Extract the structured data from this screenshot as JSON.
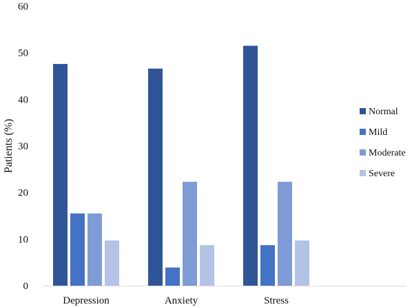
{
  "chart_data": {
    "type": "bar",
    "title": "",
    "xlabel": "",
    "ylabel": "Patients (%)",
    "ylim": [
      0,
      60
    ],
    "yticks": [
      0,
      10,
      20,
      30,
      40,
      50,
      60
    ],
    "grid": false,
    "legend_position": "right",
    "categories": [
      "Depression",
      "Anxiety",
      "Stress"
    ],
    "series": [
      {
        "name": "Normal",
        "color": "#2f5597",
        "values": [
          47.6,
          46.6,
          51.5
        ]
      },
      {
        "name": "Mild",
        "color": "#4472c4",
        "values": [
          15.5,
          3.9,
          8.7
        ]
      },
      {
        "name": "Moderate",
        "color": "#7f9bd6",
        "values": [
          15.5,
          22.3,
          22.3
        ]
      },
      {
        "name": "Severe",
        "color": "#b4c3e5",
        "values": [
          9.7,
          8.7,
          9.7
        ]
      }
    ]
  }
}
